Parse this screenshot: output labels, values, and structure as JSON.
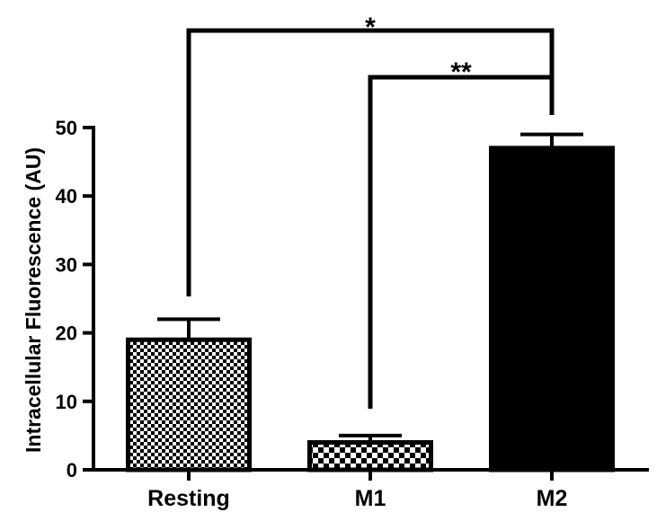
{
  "chart_data": {
    "type": "bar",
    "title": "",
    "xlabel": "",
    "ylabel": "Intracellular Fluorescence (AU)",
    "categories": [
      "Resting",
      "M1",
      "M2"
    ],
    "values": [
      19,
      4,
      47
    ],
    "errors": [
      3,
      1,
      2
    ],
    "ylim": [
      0,
      50
    ],
    "yticks": [
      0,
      10,
      20,
      30,
      40,
      50
    ],
    "ytick_labels": [
      "0",
      "10",
      "20",
      "30",
      "40",
      "50"
    ],
    "fills": [
      "small-checker",
      "large-checker",
      "solid-black"
    ],
    "grid": false,
    "legend": "none",
    "significance": [
      {
        "from": "Resting",
        "to": "M2",
        "label": "*"
      },
      {
        "from": "M1",
        "to": "M2",
        "label": "**"
      }
    ],
    "colors": {
      "bar": "#000000",
      "background": "#ffffff"
    }
  }
}
